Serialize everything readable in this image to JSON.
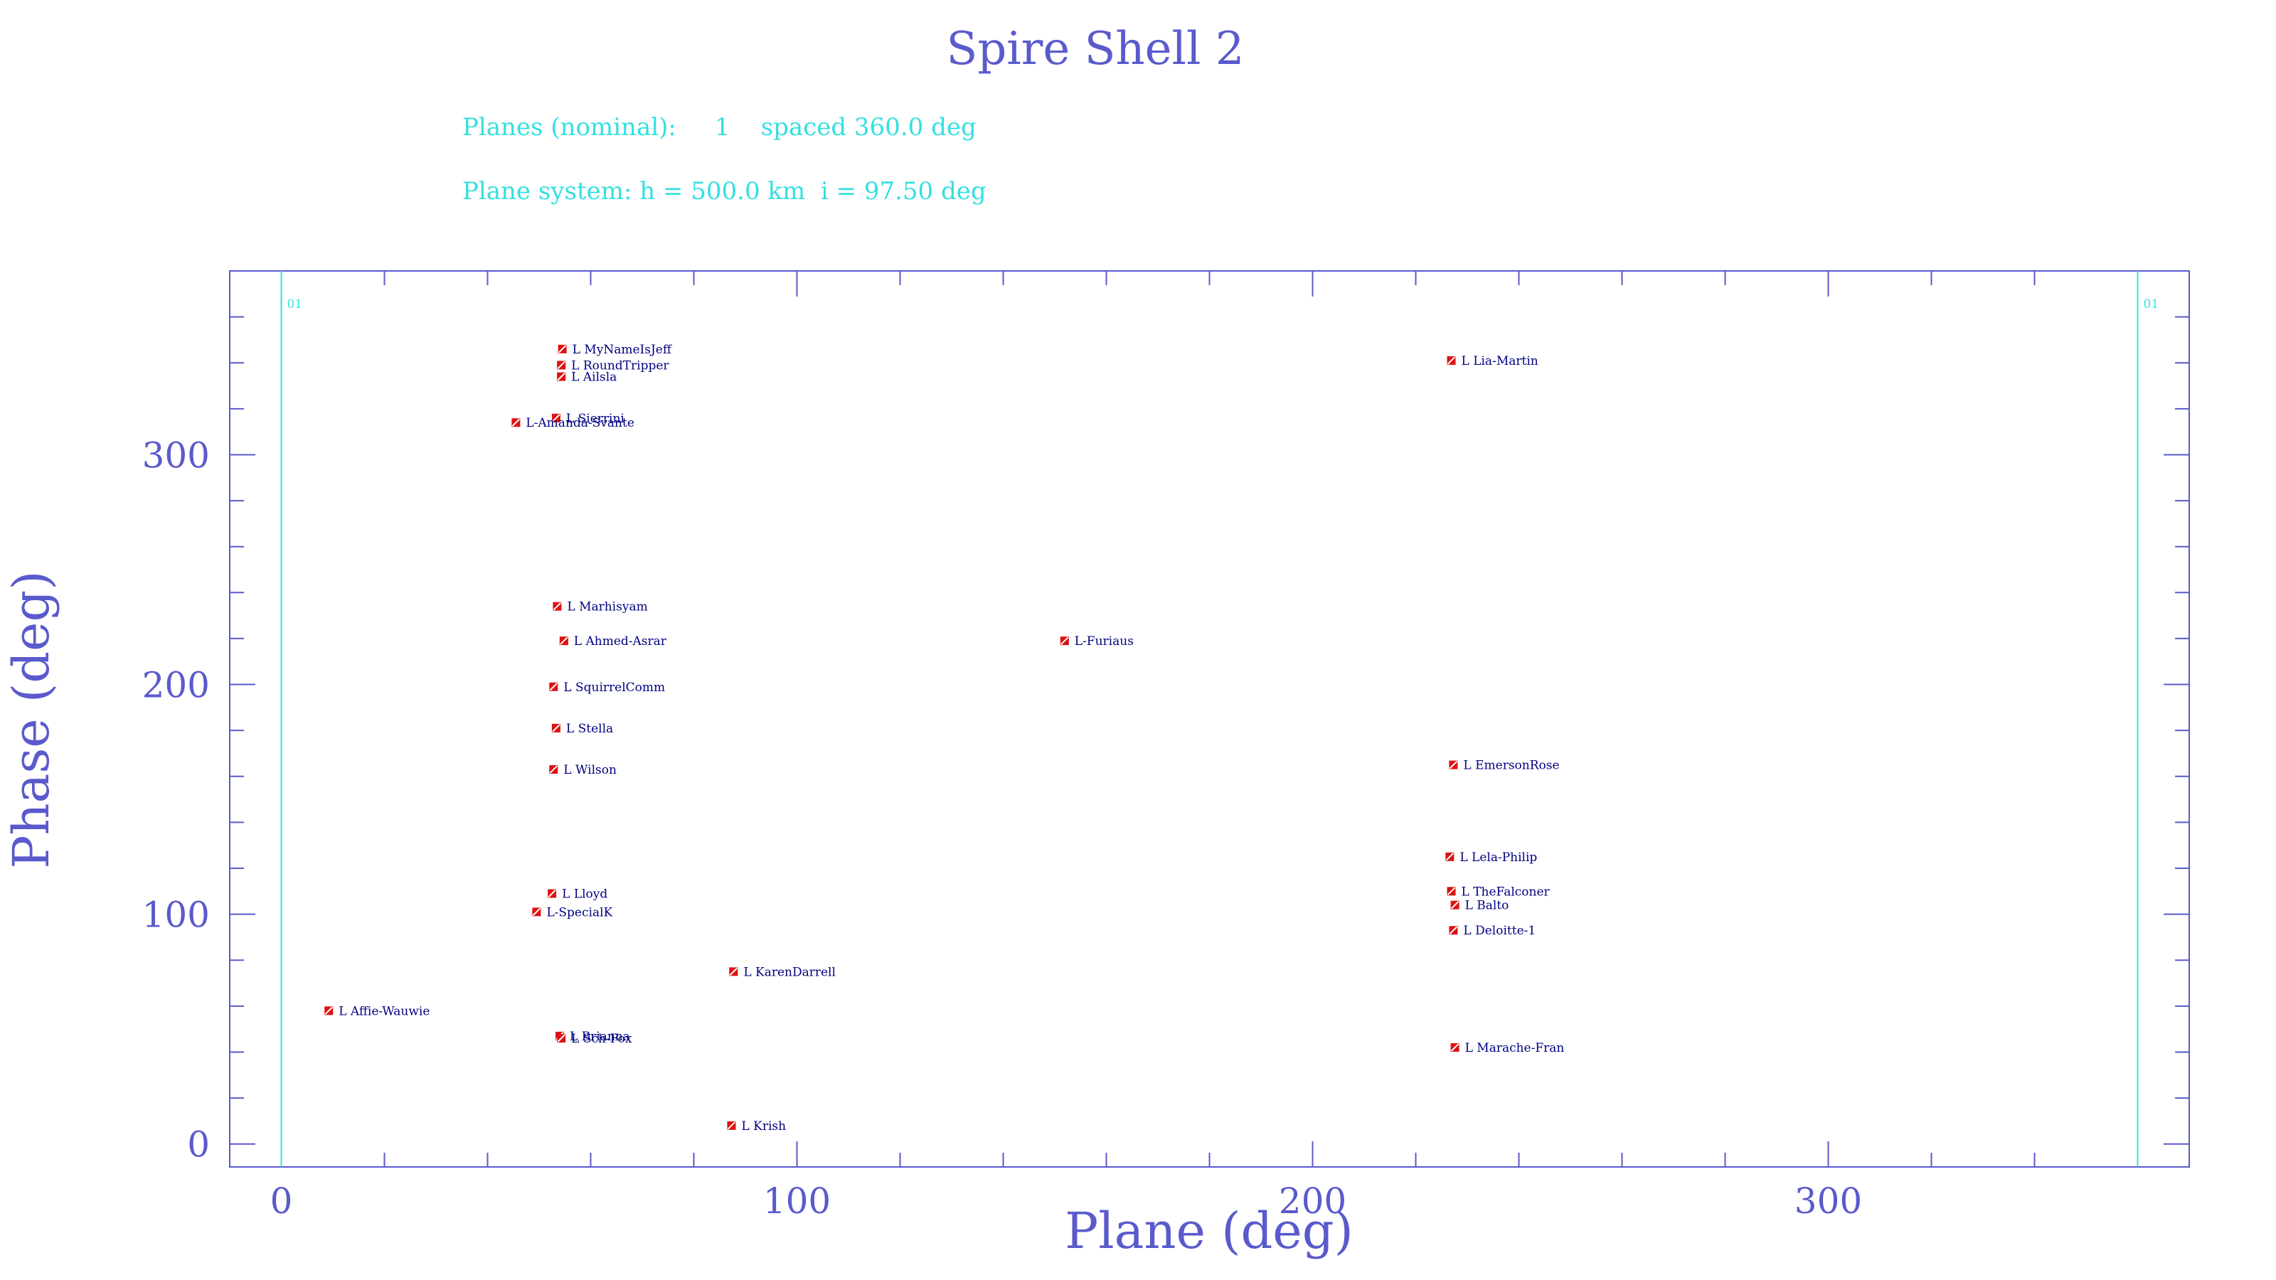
{
  "colors": {
    "axis": "#5a5acd",
    "plane_line": "#33e0e0",
    "marker": "#dd1111",
    "point_label": "#000080",
    "subtitle": "#33e0e0"
  },
  "subtitle_line1": "Planes (nominal):     1    spaced 360.0 deg",
  "subtitle_line2": "Plane system: h = 500.0 km  i = 97.50 deg",
  "chart_data": {
    "type": "scatter",
    "title": "Spire Shell 2",
    "xlabel": "Plane (deg)",
    "ylabel": "Phase (deg)",
    "xlim": [
      -10,
      370
    ],
    "ylim": [
      -10,
      380
    ],
    "xticks": [
      0,
      100,
      200,
      300
    ],
    "yticks": [
      0,
      100,
      200,
      300
    ],
    "grid": false,
    "plane_lines": [
      {
        "x": 0,
        "label": "01"
      },
      {
        "x": 360,
        "label": "01"
      }
    ],
    "points": [
      {
        "x": 54.5,
        "y": 346,
        "label": "L MyNameIsJeff"
      },
      {
        "x": 54.3,
        "y": 339,
        "label": "L RoundTripper"
      },
      {
        "x": 54.3,
        "y": 334,
        "label": "L Ailsla"
      },
      {
        "x": 53.3,
        "y": 316,
        "label": "L Sierrini"
      },
      {
        "x": 45.5,
        "y": 314,
        "label": "L-Amanda-Svante"
      },
      {
        "x": 53.5,
        "y": 234,
        "label": "L Marhisyam"
      },
      {
        "x": 54.8,
        "y": 219,
        "label": "L Ahmed-Asrar"
      },
      {
        "x": 52.8,
        "y": 199,
        "label": "L SquirrelComm"
      },
      {
        "x": 53.3,
        "y": 181,
        "label": "L Stella"
      },
      {
        "x": 52.8,
        "y": 163,
        "label": "L Wilson"
      },
      {
        "x": 52.5,
        "y": 109,
        "label": "L Lloyd"
      },
      {
        "x": 49.5,
        "y": 101,
        "label": "L-SpecialK"
      },
      {
        "x": 9.2,
        "y": 58,
        "label": "L Affie-Wauwie"
      },
      {
        "x": 54.0,
        "y": 47,
        "label": "L Brianna"
      },
      {
        "x": 54.3,
        "y": 46,
        "label": "L Sch-Fox"
      },
      {
        "x": 87.7,
        "y": 75,
        "label": "L KarenDarrell"
      },
      {
        "x": 87.3,
        "y": 8,
        "label": "L Krish"
      },
      {
        "x": 151.9,
        "y": 219,
        "label": "L-Furiaus"
      },
      {
        "x": 226.9,
        "y": 341,
        "label": "L Lia-Martin"
      },
      {
        "x": 227.3,
        "y": 165,
        "label": "L EmersonRose"
      },
      {
        "x": 226.6,
        "y": 125,
        "label": "L Lela-Philip"
      },
      {
        "x": 226.9,
        "y": 110,
        "label": "L TheFalconer"
      },
      {
        "x": 227.6,
        "y": 104,
        "label": "L Balto"
      },
      {
        "x": 227.3,
        "y": 93,
        "label": "L Deloitte-1"
      },
      {
        "x": 227.6,
        "y": 42,
        "label": "L Marache-Fran"
      }
    ]
  }
}
